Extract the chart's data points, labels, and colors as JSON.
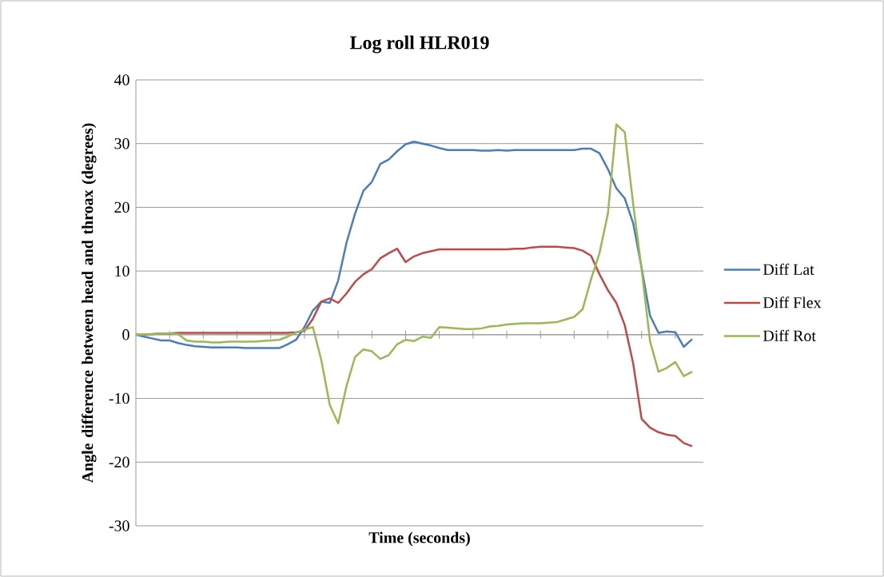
{
  "chart_data": {
    "type": "line",
    "title": "Log roll HLR019",
    "xlabel": "Time (seconds)",
    "ylabel": "Angle difference between head and throax (degrees)",
    "categories": [
      null,
      null,
      null,
      null,
      null,
      null,
      null,
      null,
      null,
      null,
      null,
      null,
      null,
      null,
      null,
      null,
      null,
      null,
      null,
      null,
      null,
      null,
      null,
      null,
      null,
      null,
      null,
      null,
      null,
      null,
      null,
      null,
      null,
      null,
      null,
      null,
      null,
      null,
      null,
      null,
      null,
      null,
      null,
      null,
      null,
      null,
      null,
      null,
      null,
      null,
      null,
      null,
      null,
      null,
      null,
      null,
      null,
      null,
      null,
      null,
      null,
      null,
      null,
      null,
      null,
      null,
      null
    ],
    "series": [
      {
        "name": "Diff Lat",
        "color": "#4a7ebb",
        "values": [
          0,
          -0.3,
          -0.6,
          -0.9,
          -0.9,
          -1.3,
          -1.6,
          -1.8,
          -1.9,
          -2.0,
          -2.0,
          -2.0,
          -2.0,
          -2.1,
          -2.1,
          -2.1,
          -2.1,
          -2.1,
          -1.5,
          -0.8,
          1.2,
          3.8,
          5.2,
          5.0,
          8.5,
          14.5,
          19.0,
          22.6,
          24.0,
          26.8,
          27.5,
          28.8,
          29.9,
          30.3,
          30.0,
          29.7,
          29.3,
          29.0,
          29.0,
          29.0,
          29.0,
          28.9,
          28.9,
          29.0,
          28.9,
          29.0,
          29.0,
          29.0,
          29.0,
          29.0,
          29.0,
          29.0,
          29.0,
          29.2,
          29.2,
          28.5,
          26.0,
          23.0,
          21.4,
          17.5,
          10.5,
          3.0,
          0.3,
          0.5,
          0.4,
          -1.9,
          -0.7
        ]
      },
      {
        "name": "Diff Flex",
        "color": "#be4b48",
        "values": [
          0,
          0,
          0.1,
          0.2,
          0.2,
          0.3,
          0.3,
          0.3,
          0.3,
          0.3,
          0.3,
          0.3,
          0.3,
          0.3,
          0.3,
          0.3,
          0.3,
          0.3,
          0.3,
          0.4,
          0.6,
          2.5,
          5.2,
          5.7,
          5.0,
          6.5,
          8.3,
          9.5,
          10.3,
          12.0,
          12.8,
          13.5,
          11.4,
          12.3,
          12.8,
          13.1,
          13.4,
          13.4,
          13.4,
          13.4,
          13.4,
          13.4,
          13.4,
          13.4,
          13.4,
          13.5,
          13.5,
          13.7,
          13.8,
          13.8,
          13.8,
          13.7,
          13.6,
          13.2,
          12.4,
          9.5,
          7.0,
          5.0,
          1.5,
          -4.5,
          -13.2,
          -14.6,
          -15.3,
          -15.7,
          -15.9,
          -17.0,
          -17.5
        ]
      },
      {
        "name": "Diff Rot",
        "color": "#98b954",
        "values": [
          0,
          0,
          0.1,
          0.2,
          0.2,
          0.1,
          -0.9,
          -1.1,
          -1.1,
          -1.2,
          -1.2,
          -1.1,
          -1.1,
          -1.1,
          -1.1,
          -1.0,
          -0.9,
          -0.8,
          -0.3,
          0.3,
          0.8,
          1.2,
          -4.0,
          -11.0,
          -13.9,
          -8.0,
          -3.5,
          -2.3,
          -2.6,
          -3.8,
          -3.2,
          -1.5,
          -0.8,
          -1.0,
          -0.3,
          -0.5,
          1.2,
          1.1,
          1.0,
          0.9,
          0.9,
          1.0,
          1.3,
          1.4,
          1.6,
          1.7,
          1.8,
          1.8,
          1.8,
          1.9,
          2.0,
          2.4,
          2.8,
          4.0,
          8.7,
          12.8,
          19.0,
          33.0,
          31.8,
          20.5,
          10.3,
          -1.0,
          -5.8,
          -5.2,
          -4.3,
          -6.5,
          -5.8
        ]
      }
    ],
    "ylim": [
      -30,
      40
    ],
    "yticks": [
      -30,
      -20,
      -10,
      0,
      10,
      20,
      30,
      40
    ],
    "grid": "y",
    "legend": "right"
  }
}
